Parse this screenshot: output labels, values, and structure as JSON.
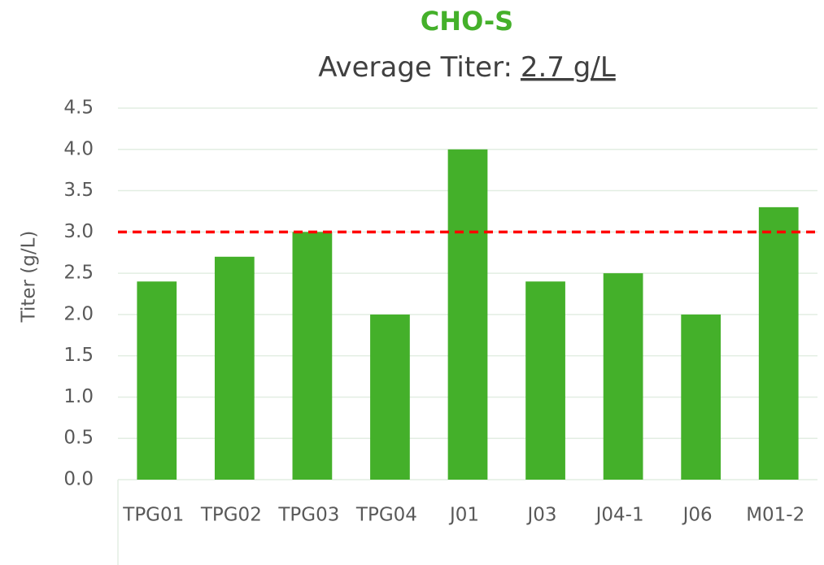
{
  "chart_data": {
    "type": "bar",
    "title": "CHO-S",
    "subtitle": "Average Titer:",
    "subtitle_value": "2.7 g/L",
    "y_label": "Titer (g/L)",
    "categories": [
      "TPG01",
      "TPG02",
      "TPG03",
      "TPG04",
      "J01",
      "J03",
      "J04-1",
      "J06",
      "M01-2"
    ],
    "values": [
      2.4,
      2.7,
      3.0,
      2.0,
      4.0,
      2.4,
      2.5,
      2.0,
      3.3
    ],
    "color": "#44b02a",
    "ylim": [
      0,
      4.5
    ],
    "yticks": [
      {
        "value": 0,
        "label": "0.0"
      },
      0.5,
      {
        "value": 1,
        "label": "1.0"
      },
      1.5,
      {
        "value": 2,
        "label": "2.0"
      },
      2.5,
      {
        "value": 3,
        "label": "3.0"
      },
      3.5,
      {
        "value": 4,
        "label": "4.0"
      },
      4.5
    ],
    "grid": true,
    "reference_line": {
      "value": 3.0,
      "color": "#ff0000"
    }
  }
}
